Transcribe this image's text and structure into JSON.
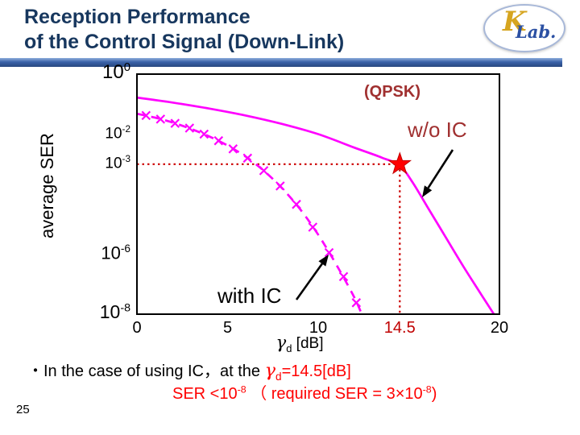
{
  "slide": {
    "title_line1": "Reception Performance",
    "title_line2": "of the Control Signal (Down-Link)",
    "page_number": "25",
    "logo_k": "K",
    "logo_lab": "Lab."
  },
  "colors": {
    "title_navy": "#17375E",
    "curve_magenta": "#FF00FF",
    "marker_red": "#FF0000",
    "dotted_dark_red": "#CC0000",
    "annotation_dark_red": "#A03030",
    "caption_red": "#FF0000",
    "bar_blue": "#3A62A8"
  },
  "chart_data": {
    "type": "line",
    "title": "",
    "xlabel_parts": {
      "gamma": "γ",
      "sub": "d",
      "unit": " [dB]"
    },
    "ylabel": "average SER",
    "xlim": [
      0,
      20
    ],
    "ylim_exp": [
      -8,
      0
    ],
    "y_scale": "log10",
    "grid": false,
    "x_ticks": [
      {
        "value": 0,
        "label": "0"
      },
      {
        "value": 5,
        "label": "5"
      },
      {
        "value": 10,
        "label": "10"
      },
      {
        "value": 14.5,
        "label": "14.5",
        "highlight": true
      },
      {
        "value": 20,
        "label": "20"
      }
    ],
    "y_tick_exps": [
      0,
      -2,
      -3,
      -6,
      -8
    ],
    "series": [
      {
        "name": "w/o IC",
        "style": "solid",
        "color": "#FF00FF",
        "points": [
          [
            0,
            -0.78
          ],
          [
            2,
            -0.95
          ],
          [
            4,
            -1.15
          ],
          [
            6,
            -1.38
          ],
          [
            8,
            -1.66
          ],
          [
            10,
            -2.0
          ],
          [
            12,
            -2.45
          ],
          [
            13.5,
            -2.78
          ],
          [
            14.5,
            -3.05
          ],
          [
            15.2,
            -3.6
          ],
          [
            16,
            -4.4
          ],
          [
            17,
            -5.4
          ],
          [
            18,
            -6.4
          ],
          [
            19,
            -7.35
          ],
          [
            19.8,
            -8.1
          ]
        ]
      },
      {
        "name": "with IC",
        "style": "dashed",
        "color": "#FF00FF",
        "marker": "x",
        "points": [
          [
            0,
            -1.32
          ],
          [
            1,
            -1.45
          ],
          [
            2,
            -1.62
          ],
          [
            3,
            -1.83
          ],
          [
            4,
            -2.08
          ],
          [
            5,
            -2.38
          ],
          [
            6,
            -2.75
          ],
          [
            7,
            -3.22
          ],
          [
            8,
            -3.8
          ],
          [
            9,
            -4.5
          ],
          [
            10,
            -5.35
          ],
          [
            11,
            -6.35
          ],
          [
            12,
            -7.45
          ],
          [
            12.5,
            -8.15
          ]
        ],
        "marker_points": [
          [
            0.5,
            -1.38
          ],
          [
            1.3,
            -1.5
          ],
          [
            2.1,
            -1.64
          ],
          [
            2.9,
            -1.8
          ],
          [
            3.7,
            -2.0
          ],
          [
            4.5,
            -2.22
          ],
          [
            5.3,
            -2.49
          ],
          [
            6.1,
            -2.8
          ],
          [
            7.0,
            -3.22
          ],
          [
            7.9,
            -3.73
          ],
          [
            8.8,
            -4.34
          ],
          [
            9.7,
            -5.1
          ],
          [
            10.6,
            -5.95
          ],
          [
            11.4,
            -6.75
          ],
          [
            12.1,
            -7.62
          ]
        ]
      }
    ],
    "annotations": {
      "qpsk": "(QPSK)",
      "wo_ic": "w/o IC",
      "with_ic": "with IC",
      "star": {
        "gamma_dB": 14.5,
        "ser_exp": -3,
        "ser": "1e-3"
      }
    }
  },
  "caption": {
    "line1_black": "・In the case of using IC，at the ",
    "line1_gamma": "γ",
    "line1_gamma_sub": "d",
    "line1_red_rest": "=14.5[dB]",
    "line2_part1": "SER <10",
    "line2_sup1": "-8",
    "line2_part2": " （ required SER = 3×10",
    "line2_sup2": "-8",
    "line2_part3": ")"
  }
}
